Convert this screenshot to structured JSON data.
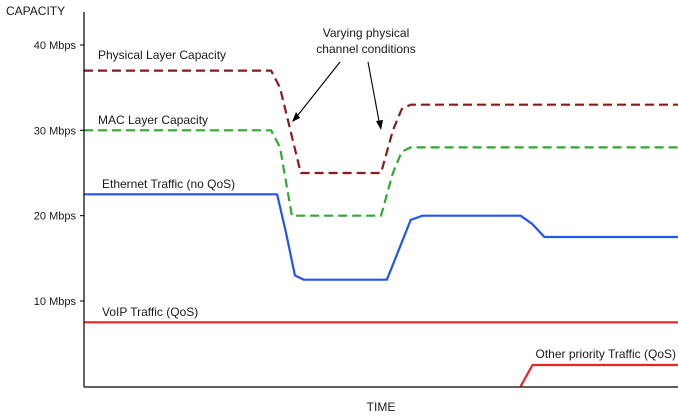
{
  "chart_data": {
    "type": "line",
    "xlabel": "TIME",
    "ylabel": "CAPACITY",
    "xlim": [
      0,
      100
    ],
    "ylim": [
      0,
      44
    ],
    "y_ticks": [
      {
        "value": 10,
        "label": "10 Mbps"
      },
      {
        "value": 20,
        "label": "20 Mbps"
      },
      {
        "value": 30,
        "label": "30 Mbps"
      },
      {
        "value": 40,
        "label": "40 Mbps"
      }
    ],
    "grid": false,
    "annotations": [
      {
        "id": "conditions",
        "text_lines": [
          "Varying physical",
          "channel conditions"
        ]
      }
    ],
    "series": [
      {
        "name": "Physical Layer Capacity",
        "color": "#8b1a1a",
        "dash": "dashed",
        "points": [
          [
            0,
            37
          ],
          [
            31.5,
            37
          ],
          [
            33,
            35
          ],
          [
            36.5,
            25
          ],
          [
            50,
            25
          ],
          [
            52,
            30
          ],
          [
            53.5,
            32.5
          ],
          [
            55,
            33
          ],
          [
            100,
            33
          ]
        ]
      },
      {
        "name": "MAC Layer Capacity",
        "color": "#2eaa2e",
        "dash": "dashed",
        "points": [
          [
            0,
            30
          ],
          [
            31.5,
            30
          ],
          [
            33,
            28
          ],
          [
            35,
            20
          ],
          [
            50,
            20
          ],
          [
            52,
            25
          ],
          [
            53.5,
            27.5
          ],
          [
            55,
            28
          ],
          [
            100,
            28
          ]
        ]
      },
      {
        "name": "Ethernet Traffic (no QoS)",
        "color": "#2255ee",
        "dash": "solid",
        "points": [
          [
            0,
            22.5
          ],
          [
            32.5,
            22.5
          ],
          [
            34,
            18
          ],
          [
            35.5,
            13
          ],
          [
            37,
            12.5
          ],
          [
            51,
            12.5
          ],
          [
            53,
            16
          ],
          [
            55,
            19.5
          ],
          [
            57,
            20
          ],
          [
            73.5,
            20
          ],
          [
            75.5,
            19
          ],
          [
            77.5,
            17.5
          ],
          [
            100,
            17.5
          ]
        ]
      },
      {
        "name": "VoIP Traffic (QoS)",
        "color": "#ee2222",
        "dash": "solid",
        "points": [
          [
            0,
            7.5
          ],
          [
            100,
            7.5
          ]
        ]
      },
      {
        "name": "Other priority Traffic (QoS)",
        "color": "#ee2222",
        "dash": "solid",
        "points": [
          [
            73.5,
            0
          ],
          [
            75.5,
            2.5
          ],
          [
            100,
            2.5
          ]
        ]
      }
    ]
  }
}
